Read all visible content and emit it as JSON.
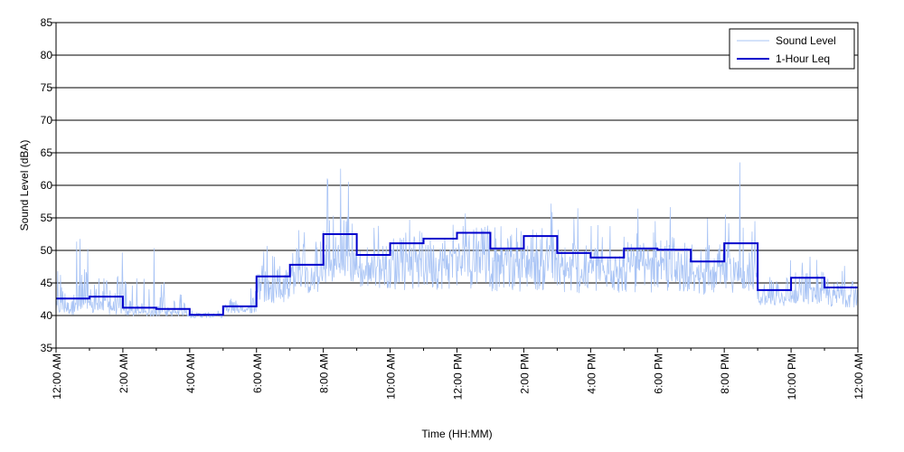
{
  "chart_data": {
    "type": "line",
    "title": "",
    "xlabel": "Time (HH:MM)",
    "ylabel": "Sound Level (dBA)",
    "xlim": [
      0,
      24
    ],
    "ylim": [
      35,
      85
    ],
    "y_ticks": [
      35,
      40,
      45,
      50,
      55,
      60,
      65,
      70,
      75,
      80,
      85
    ],
    "x_ticks": [
      {
        "hour": 0,
        "label": "12:00 AM"
      },
      {
        "hour": 2,
        "label": "2:00 AM"
      },
      {
        "hour": 4,
        "label": "4:00 AM"
      },
      {
        "hour": 6,
        "label": "6:00 AM"
      },
      {
        "hour": 8,
        "label": "8:00 AM"
      },
      {
        "hour": 10,
        "label": "10:00 AM"
      },
      {
        "hour": 12,
        "label": "12:00 PM"
      },
      {
        "hour": 14,
        "label": "2:00 PM"
      },
      {
        "hour": 16,
        "label": "4:00 PM"
      },
      {
        "hour": 18,
        "label": "6:00 PM"
      },
      {
        "hour": 20,
        "label": "8:00 PM"
      },
      {
        "hour": 22,
        "label": "10:00 PM"
      },
      {
        "hour": 24,
        "label": "12:00 AM"
      }
    ],
    "grid": "horizontal",
    "legend_position": "top-right",
    "colors": {
      "sound_level": "#a9c4f5",
      "leq": "#0000cc"
    },
    "series": [
      {
        "name": "Sound Level",
        "style": "thin-light-blue",
        "hourly_profile": [
          {
            "hour": 0,
            "min": 39.5,
            "typ": 41.5,
            "max": 53.5
          },
          {
            "hour": 1,
            "min": 39.5,
            "typ": 41.5,
            "max": 51.0
          },
          {
            "hour": 2,
            "min": 39.5,
            "typ": 40.5,
            "max": 51.0
          },
          {
            "hour": 3,
            "min": 39.5,
            "typ": 40.5,
            "max": 47.0
          },
          {
            "hour": 4,
            "min": 39.5,
            "typ": 40.0,
            "max": 41.0
          },
          {
            "hour": 5,
            "min": 40.0,
            "typ": 41.0,
            "max": 45.0
          },
          {
            "hour": 6,
            "min": 41.0,
            "typ": 44.0,
            "max": 52.0
          },
          {
            "hour": 7,
            "min": 42.0,
            "typ": 46.0,
            "max": 57.0
          },
          {
            "hour": 8,
            "min": 43.5,
            "typ": 48.0,
            "max": 63.5
          },
          {
            "hour": 9,
            "min": 43.0,
            "typ": 47.0,
            "max": 55.0
          },
          {
            "hour": 10,
            "min": 42.0,
            "typ": 48.0,
            "max": 58.0
          },
          {
            "hour": 11,
            "min": 42.0,
            "typ": 48.5,
            "max": 56.0
          },
          {
            "hour": 12,
            "min": 42.0,
            "typ": 49.0,
            "max": 60.0
          },
          {
            "hour": 13,
            "min": 42.0,
            "typ": 47.5,
            "max": 60.0
          },
          {
            "hour": 14,
            "min": 42.0,
            "typ": 48.0,
            "max": 59.0
          },
          {
            "hour": 15,
            "min": 42.0,
            "typ": 46.5,
            "max": 57.0
          },
          {
            "hour": 16,
            "min": 42.0,
            "typ": 46.5,
            "max": 55.0
          },
          {
            "hour": 17,
            "min": 42.0,
            "typ": 47.0,
            "max": 59.0
          },
          {
            "hour": 18,
            "min": 42.0,
            "typ": 47.0,
            "max": 57.5
          },
          {
            "hour": 19,
            "min": 42.0,
            "typ": 46.0,
            "max": 56.0
          },
          {
            "hour": 20,
            "min": 42.0,
            "typ": 47.0,
            "max": 64.5
          },
          {
            "hour": 21,
            "min": 41.0,
            "typ": 42.5,
            "max": 50.0
          },
          {
            "hour": 22,
            "min": 41.0,
            "typ": 43.5,
            "max": 50.0
          },
          {
            "hour": 23,
            "min": 40.5,
            "typ": 43.0,
            "max": 49.0
          }
        ]
      },
      {
        "name": "1-Hour Leq",
        "style": "step",
        "x": [
          0,
          1,
          2,
          3,
          4,
          5,
          6,
          7,
          8,
          9,
          10,
          11,
          12,
          13,
          14,
          15,
          16,
          17,
          18,
          19,
          20,
          21,
          22,
          23
        ],
        "values": [
          42.6,
          42.9,
          41.2,
          41.0,
          40.1,
          41.4,
          46.0,
          47.8,
          52.5,
          49.3,
          51.1,
          51.8,
          52.7,
          50.3,
          52.2,
          49.6,
          48.9,
          50.3,
          50.1,
          48.3,
          51.1,
          43.9,
          45.8,
          44.3
        ]
      }
    ]
  }
}
